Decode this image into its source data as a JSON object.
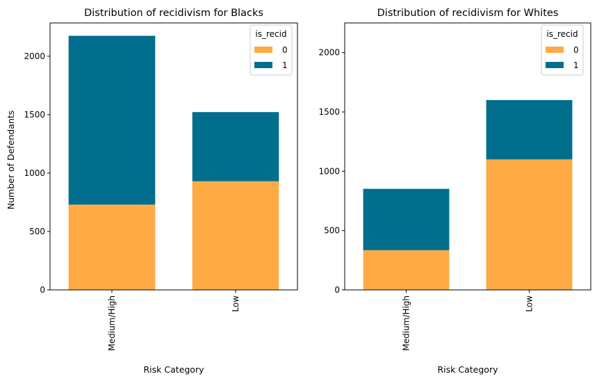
{
  "colors": {
    "recid_0": "#FFAA44",
    "recid_1": "#006E8C"
  },
  "legend_title": "is_recid",
  "legend_labels": [
    "0",
    "1"
  ],
  "chart_data": [
    {
      "type": "bar",
      "stacked": true,
      "title": "Distribution of recidivism for Blacks",
      "xlabel": "Risk Category",
      "ylabel": "Number of Defendants",
      "categories": [
        "Medium/High",
        "Low"
      ],
      "series": [
        {
          "name": "0",
          "values": [
            730,
            930
          ]
        },
        {
          "name": "1",
          "values": [
            1445,
            592
          ]
        }
      ],
      "ylim": [
        0,
        2285
      ],
      "yticks": [
        0,
        500,
        1000,
        1500,
        2000
      ],
      "legend": "top-right",
      "grid": false
    },
    {
      "type": "bar",
      "stacked": true,
      "title": "Distribution of recidivism for Whites",
      "xlabel": "Risk Category",
      "ylabel": "",
      "categories": [
        "Medium/High",
        "Low"
      ],
      "series": [
        {
          "name": "0",
          "values": [
            335,
            1100
          ]
        },
        {
          "name": "1",
          "values": [
            517,
            500
          ]
        }
      ],
      "ylim": [
        0,
        2250
      ],
      "yticks": [
        0,
        500,
        1000,
        1500,
        2000
      ],
      "legend": "top-right",
      "grid": false
    }
  ]
}
